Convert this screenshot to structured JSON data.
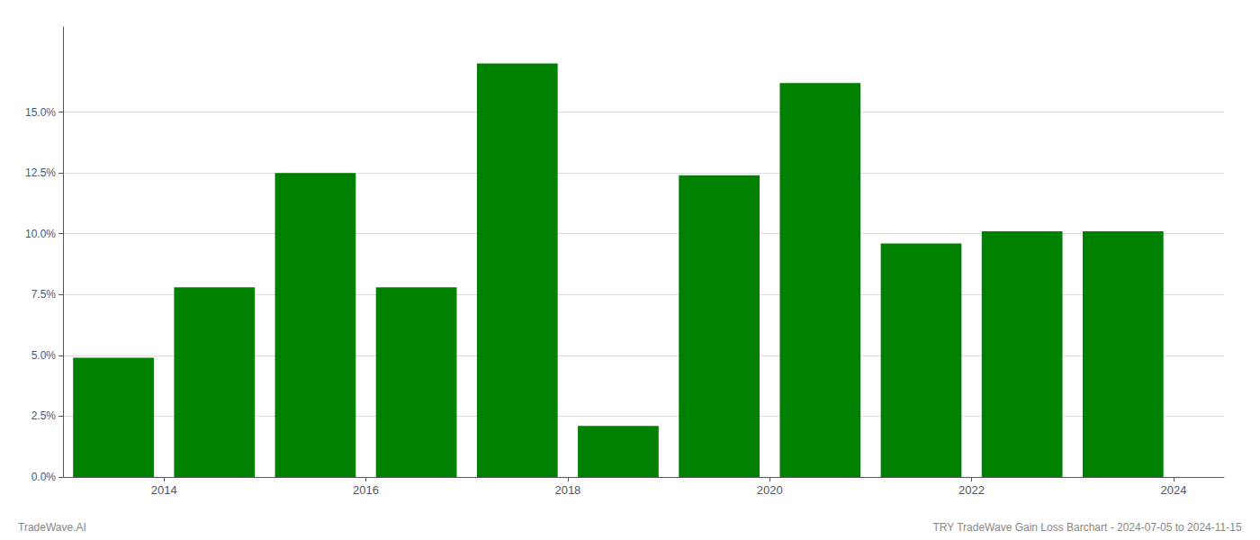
{
  "chart_data": {
    "type": "bar",
    "x": [
      2014,
      2015,
      2016,
      2017,
      2018,
      2019,
      2020,
      2021,
      2022,
      2023,
      2024
    ],
    "values": [
      0.049,
      0.078,
      0.125,
      0.078,
      0.17,
      0.021,
      0.124,
      0.162,
      0.096,
      0.101,
      0.101
    ],
    "color": "#008000",
    "xlim": [
      2013.5,
      2025.0
    ],
    "xticks": [
      {
        "value": 2014.5,
        "label": "2014"
      },
      {
        "value": 2016.5,
        "label": "2016"
      },
      {
        "value": 2018.5,
        "label": "2018"
      },
      {
        "value": 2020.5,
        "label": "2020"
      },
      {
        "value": 2022.5,
        "label": "2022"
      },
      {
        "value": 2024.5,
        "label": "2024"
      }
    ],
    "ylim": [
      0.0,
      0.185
    ],
    "yticks": [
      {
        "value": 0.0,
        "label": "0.0%"
      },
      {
        "value": 0.025,
        "label": "2.5%"
      },
      {
        "value": 0.05,
        "label": "5.0%"
      },
      {
        "value": 0.075,
        "label": "7.5%"
      },
      {
        "value": 0.1,
        "label": "10.0%"
      },
      {
        "value": 0.125,
        "label": "12.5%"
      },
      {
        "value": 0.15,
        "label": "15.0%"
      }
    ],
    "grid": true,
    "annotations": [
      "TradeWave.AI",
      "TRY TradeWave Gain Loss Barchart - 2024-07-05 to 2024-11-15"
    ]
  }
}
